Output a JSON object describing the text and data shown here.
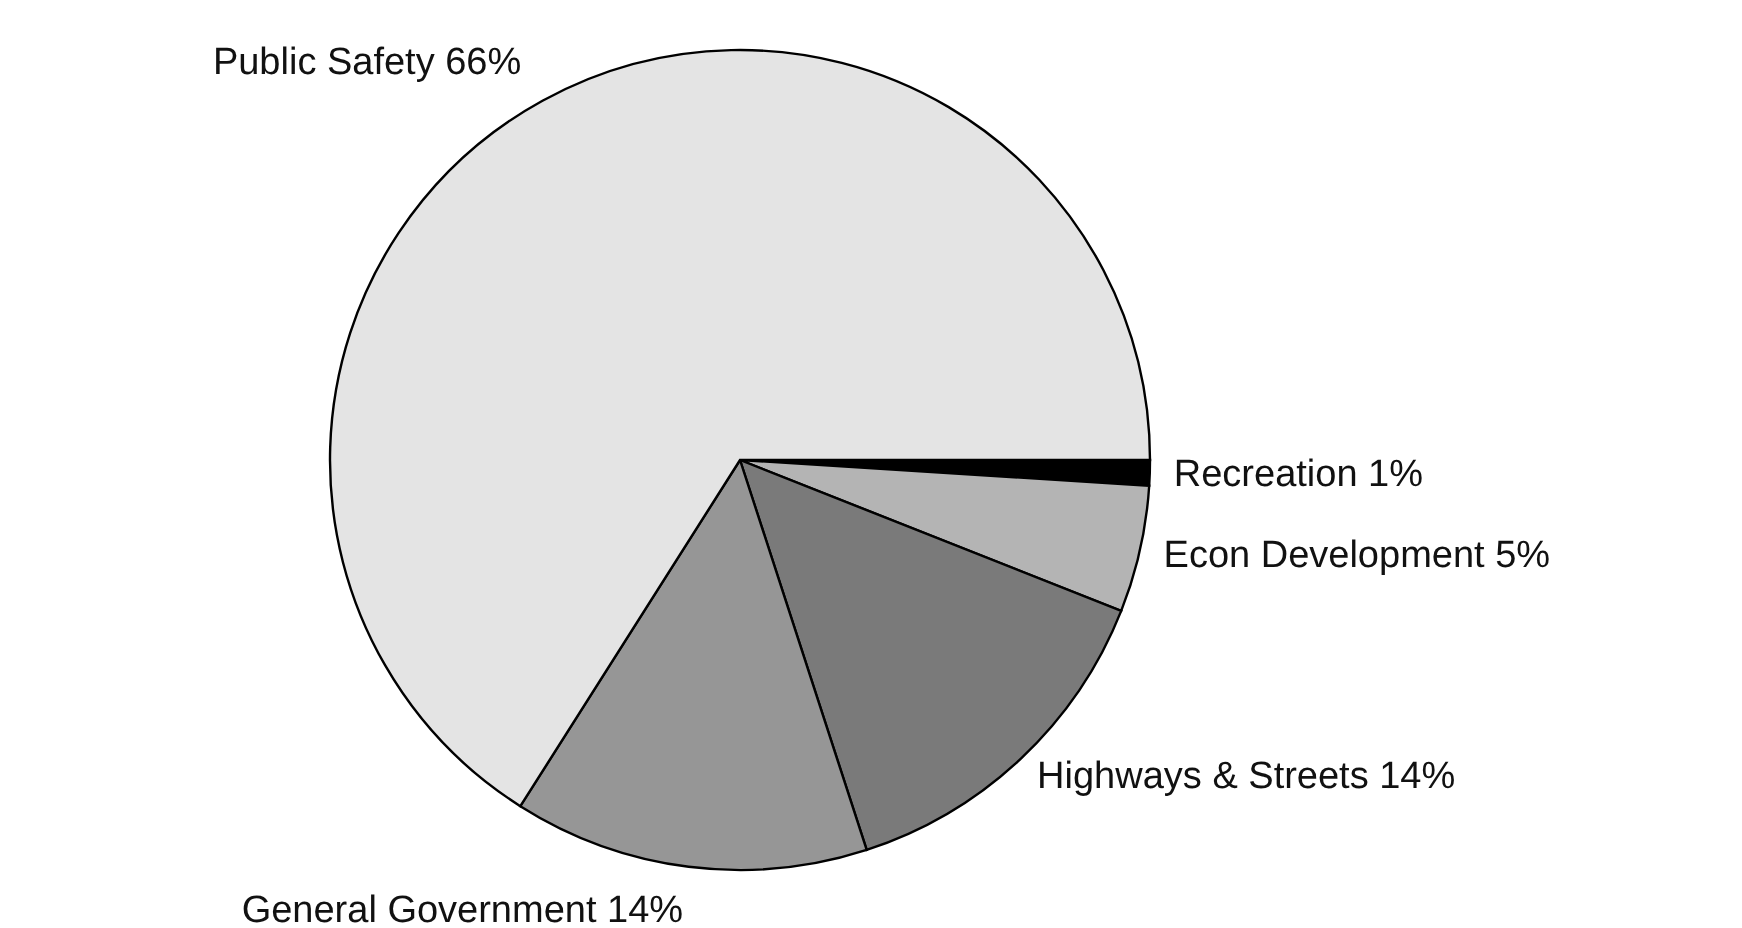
{
  "chart_data": {
    "type": "pie",
    "categories": [
      "Recreation",
      "Econ Development",
      "Highways & Streets",
      "General Government",
      "Public Safety"
    ],
    "values": [
      1,
      5,
      14,
      14,
      66
    ],
    "colors": [
      "#000000",
      "#b4b4b4",
      "#7a7a7a",
      "#969696",
      "#e4e4e4"
    ],
    "value_labels": [
      "1%",
      "5%",
      "14%",
      "14%",
      "66%"
    ]
  }
}
